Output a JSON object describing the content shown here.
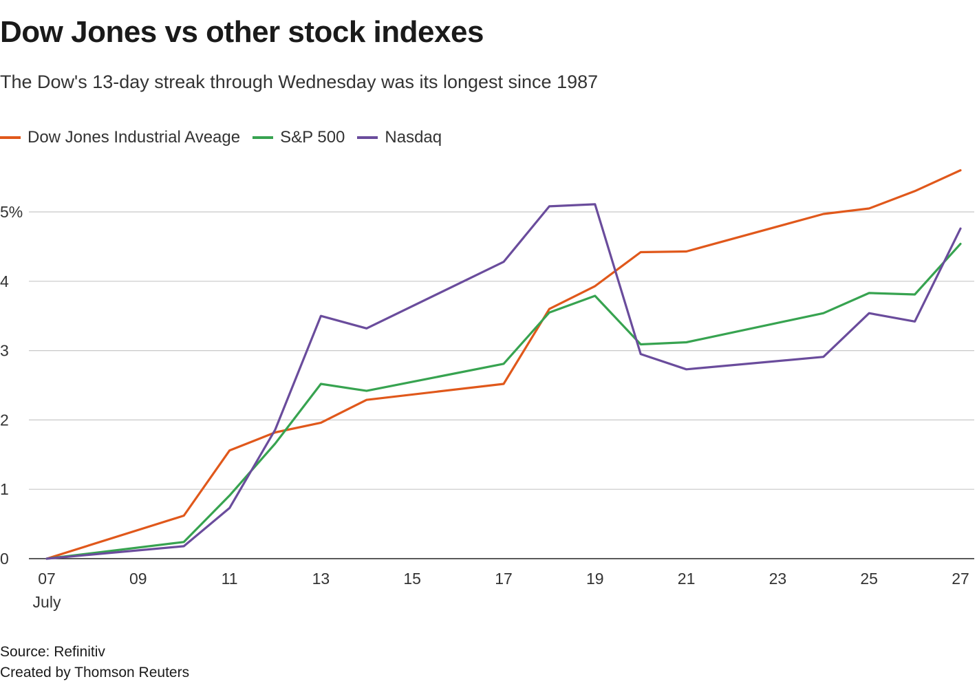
{
  "title": "Dow Jones vs other stock indexes",
  "subtitle": "The Dow's 13-day streak through Wednesday was its longest since 1987",
  "footer": {
    "source": "Source: Refinitiv",
    "credit": "Created by Thomson Reuters"
  },
  "chart_data": {
    "type": "line",
    "x_unit": "day of July",
    "x_tick_values": [
      7,
      9,
      11,
      13,
      15,
      17,
      19,
      21,
      23,
      25,
      27
    ],
    "x_tick_labels": [
      "07",
      "09",
      "11",
      "13",
      "15",
      "17",
      "19",
      "21",
      "23",
      "25",
      "27"
    ],
    "x_sublabel": "July",
    "xlim": [
      7,
      27
    ],
    "y_ticks": [
      0,
      1,
      2,
      3,
      4,
      5
    ],
    "y_tick_labels": [
      "0",
      "1",
      "2",
      "3",
      "4",
      "5%"
    ],
    "ylim": [
      0,
      5.9
    ],
    "grid": "horizontal",
    "legend_position": "top-left",
    "series": [
      {
        "name": "Dow Jones Industrial Aveage",
        "color": "#e0581b",
        "x": [
          7,
          10,
          11,
          12,
          13,
          14,
          17,
          18,
          19,
          20,
          21,
          24,
          25,
          26,
          27
        ],
        "y": [
          0,
          0.62,
          1.56,
          1.82,
          1.96,
          2.29,
          2.52,
          3.6,
          3.93,
          4.42,
          4.43,
          4.97,
          5.05,
          5.3,
          5.6
        ]
      },
      {
        "name": "S&P 500",
        "color": "#37a350",
        "x": [
          7,
          10,
          11,
          12,
          13,
          14,
          17,
          18,
          19,
          20,
          21,
          24,
          25,
          26,
          27
        ],
        "y": [
          0,
          0.24,
          0.91,
          1.66,
          2.52,
          2.42,
          2.81,
          3.55,
          3.79,
          3.09,
          3.12,
          3.54,
          3.83,
          3.81,
          4.54
        ]
      },
      {
        "name": "Nasdaq",
        "color": "#6a4c9c",
        "x": [
          7,
          10,
          11,
          12,
          13,
          14,
          17,
          18,
          19,
          20,
          21,
          24,
          25,
          26,
          27
        ],
        "y": [
          0,
          0.18,
          0.73,
          1.86,
          3.5,
          3.32,
          4.28,
          5.08,
          5.11,
          2.95,
          2.73,
          2.91,
          3.54,
          3.42,
          4.76
        ]
      }
    ]
  }
}
